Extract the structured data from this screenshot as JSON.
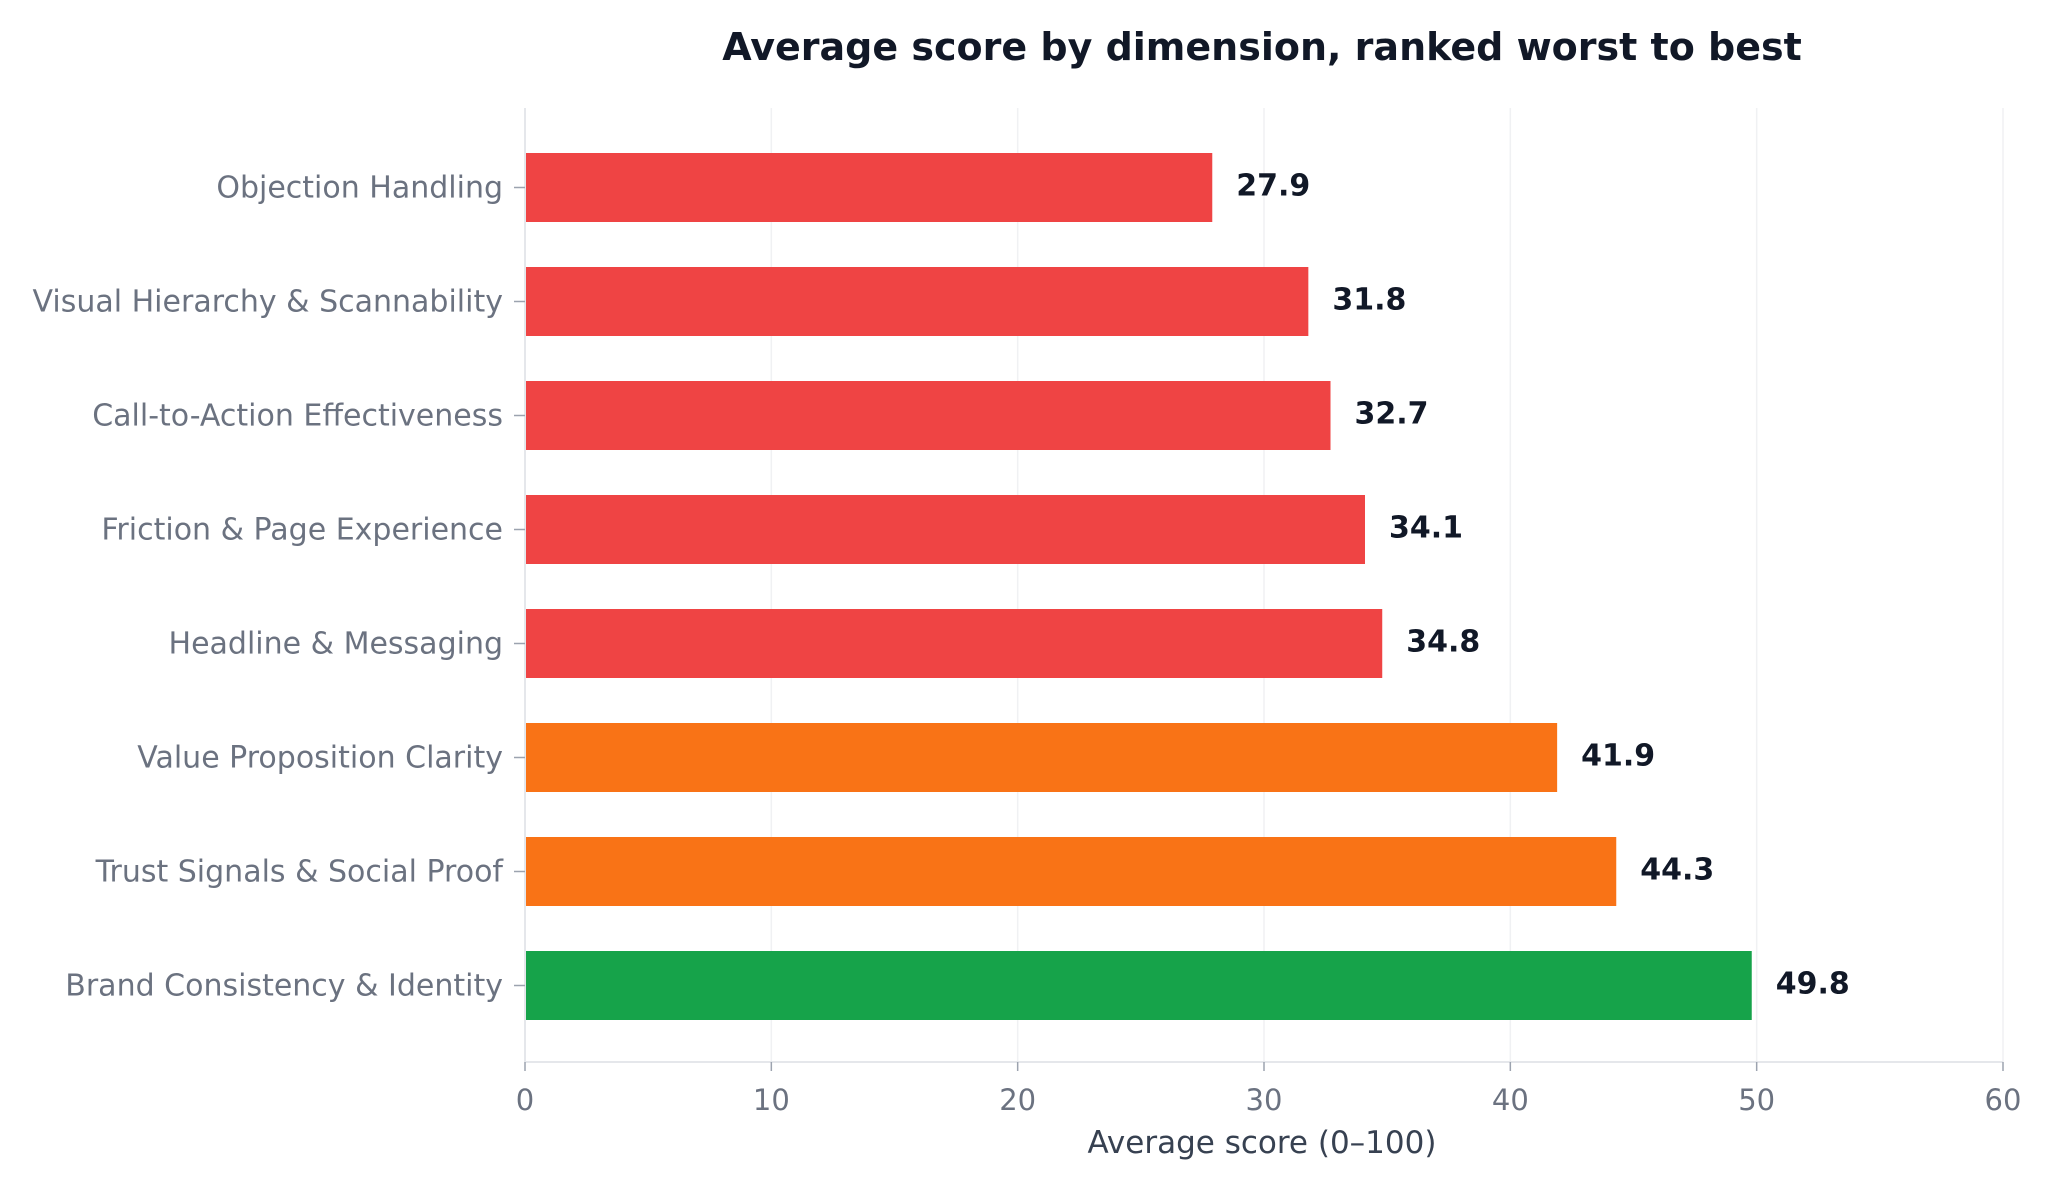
{
  "chart_data": {
    "type": "bar",
    "orientation": "horizontal",
    "title": "Average score by dimension, ranked worst to best",
    "xlabel": "Average score (0–100)",
    "ylabel": "",
    "xlim": [
      0,
      60
    ],
    "xticks": [
      0,
      10,
      20,
      30,
      40,
      50,
      60
    ],
    "grid": true,
    "categories": [
      "Objection Handling",
      "Visual Hierarchy & Scannability",
      "Call-to-Action Effectiveness",
      "Friction & Page Experience",
      "Headline & Messaging",
      "Value Proposition Clarity",
      "Trust Signals & Social Proof",
      "Brand Consistency & Identity"
    ],
    "values": [
      27.9,
      31.8,
      32.7,
      34.1,
      34.8,
      41.9,
      44.3,
      49.8
    ],
    "value_labels": [
      "27.9",
      "31.8",
      "32.7",
      "34.1",
      "34.8",
      "41.9",
      "44.3",
      "49.8"
    ],
    "bar_colors": [
      "#ef4444",
      "#ef4444",
      "#ef4444",
      "#ef4444",
      "#ef4444",
      "#f97316",
      "#f97316",
      "#16a34a"
    ]
  }
}
